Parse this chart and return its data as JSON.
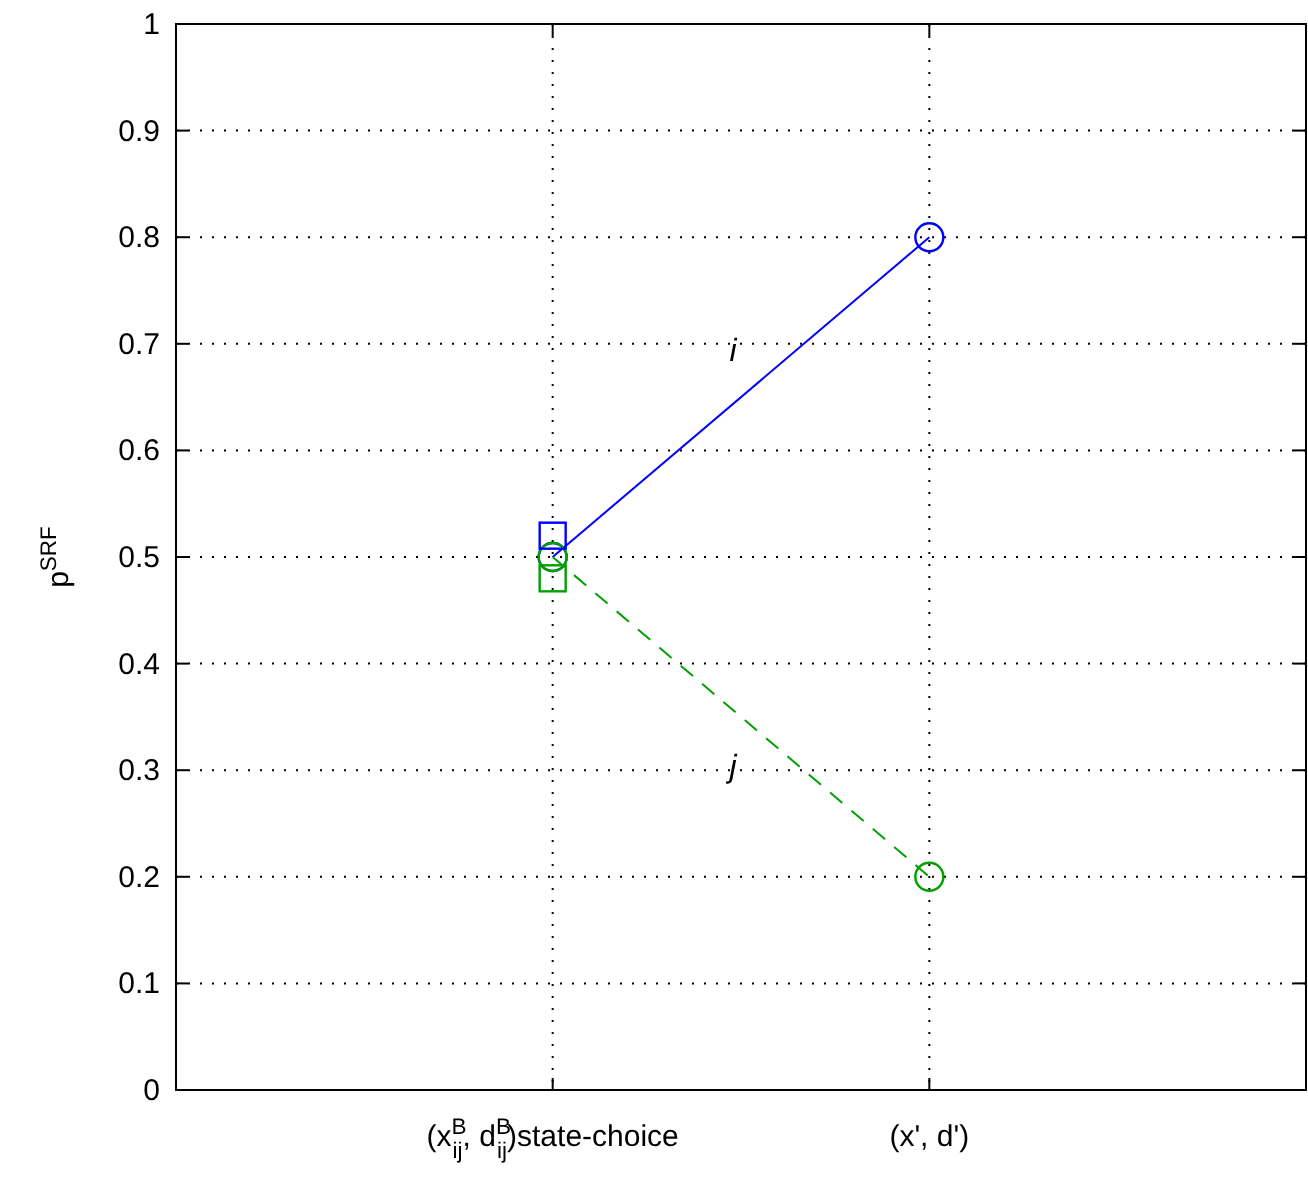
{
  "chart_data": {
    "type": "line",
    "ylabel": "p$^{SRF}$",
    "categories": [
      null,
      "(x$^{B}$$_{ij}$, d$^{B}$$_{ij}$)state-choice",
      "(x', d')",
      null
    ],
    "ylim": [
      0,
      1
    ],
    "yticks": [
      0,
      0.1,
      0.2,
      0.3,
      0.4,
      0.5,
      0.6,
      0.7,
      0.8,
      0.9,
      1
    ],
    "grid": true,
    "series": [
      {
        "name": "i",
        "color": "#0000ff",
        "values": [
          null,
          0.5,
          0.8,
          null
        ],
        "marker": "circle",
        "line_style": "solid"
      },
      {
        "name": "j",
        "color": "#00a000",
        "values": [
          null,
          0.5,
          0.2,
          null
        ],
        "marker": "circle",
        "line_style": "dashed"
      },
      {
        "type": "scatter",
        "color": "#0000ff",
        "values": [
          null,
          0.52,
          null,
          null
        ],
        "marker": "square"
      },
      {
        "type": "scatter",
        "color": "#00a000",
        "values": [
          null,
          0.48,
          null,
          null
        ],
        "marker": "square"
      }
    ]
  }
}
